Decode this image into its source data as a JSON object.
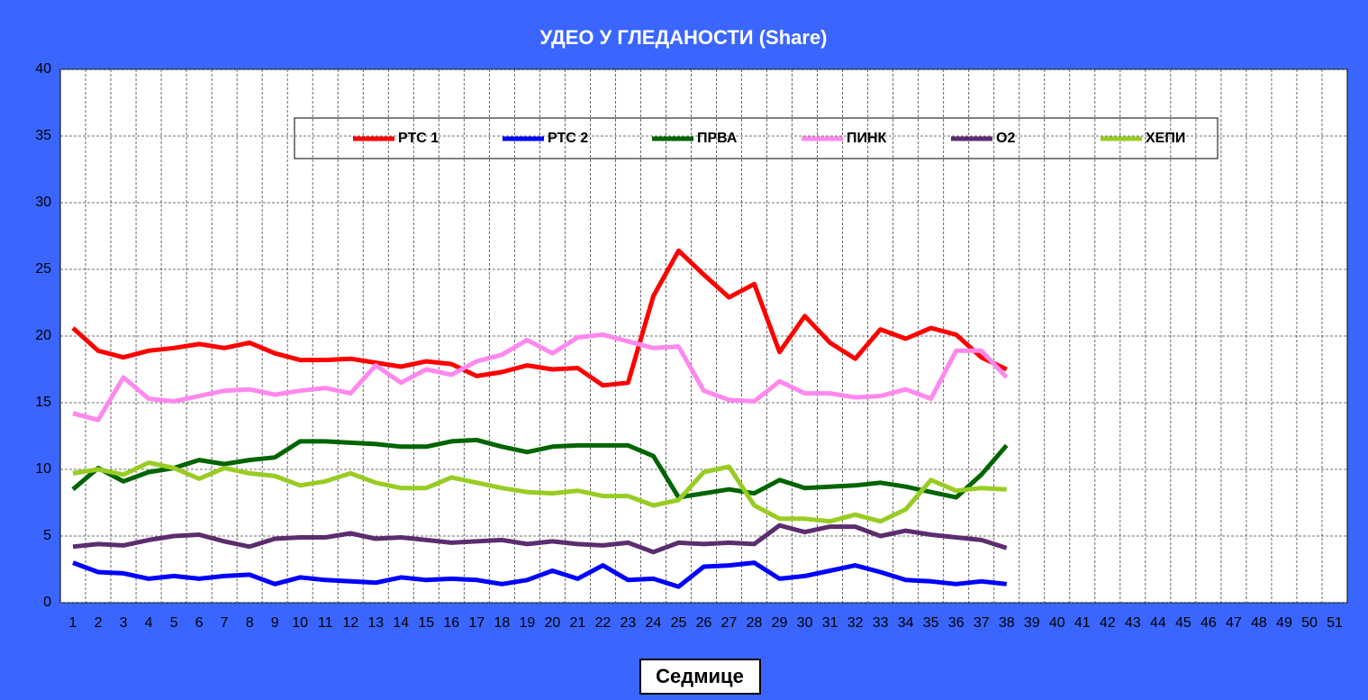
{
  "chart_data": {
    "type": "line",
    "title": "УДЕО У ГЛЕДАНОСТИ (Share)",
    "x_label": "Седмице",
    "categories": [
      "1",
      "2",
      "3",
      "4",
      "5",
      "6",
      "7",
      "8",
      "9",
      "10",
      "11",
      "12",
      "13",
      "14",
      "15",
      "16",
      "17",
      "18",
      "19",
      "20",
      "21",
      "22",
      "23",
      "24",
      "25",
      "26",
      "27",
      "28",
      "29",
      "30",
      "31",
      "32",
      "33",
      "34",
      "35",
      "36",
      "37",
      "38",
      "39",
      "40",
      "41",
      "42",
      "43",
      "44",
      "45",
      "46",
      "47",
      "48",
      "49",
      "50",
      "51"
    ],
    "ylim": [
      0,
      40
    ],
    "yticks": [
      0,
      5,
      10,
      15,
      20,
      25,
      30,
      35,
      40
    ],
    "grid": true,
    "legend": "top",
    "series": [
      {
        "name": "РТС 1",
        "color": "#ff0000",
        "values": [
          20.6,
          18.9,
          18.4,
          18.9,
          19.1,
          19.4,
          19.1,
          19.5,
          18.7,
          18.2,
          18.2,
          18.3,
          18.0,
          17.7,
          18.1,
          17.9,
          17.0,
          17.3,
          17.8,
          17.5,
          17.6,
          16.3,
          16.5,
          23.0,
          26.4,
          24.6,
          22.9,
          23.9,
          18.8,
          21.5,
          19.5,
          18.3,
          20.5,
          19.8,
          20.6,
          20.1,
          18.4,
          17.5,
          null,
          null,
          null,
          null,
          null,
          null,
          null,
          null,
          null,
          null,
          null,
          null,
          null
        ]
      },
      {
        "name": "РТС 2",
        "color": "#0000ff",
        "values": [
          3.0,
          2.3,
          2.2,
          1.8,
          2.0,
          1.8,
          2.0,
          2.1,
          1.4,
          1.9,
          1.7,
          1.6,
          1.5,
          1.9,
          1.7,
          1.8,
          1.7,
          1.4,
          1.7,
          2.4,
          1.8,
          2.8,
          1.7,
          1.8,
          1.2,
          2.7,
          2.8,
          3.0,
          1.8,
          2.0,
          2.4,
          2.8,
          2.3,
          1.7,
          1.6,
          1.4,
          1.6,
          1.4,
          null,
          null,
          null,
          null,
          null,
          null,
          null,
          null,
          null,
          null,
          null,
          null,
          null
        ]
      },
      {
        "name": "ПРВА",
        "color": "#006400",
        "values": [
          8.5,
          10.1,
          9.1,
          9.8,
          10.1,
          10.7,
          10.4,
          10.7,
          10.9,
          12.1,
          12.1,
          12.0,
          11.9,
          11.7,
          11.7,
          12.1,
          12.2,
          11.7,
          11.3,
          11.7,
          11.8,
          11.8,
          11.8,
          11.0,
          7.9,
          8.2,
          8.5,
          8.2,
          9.2,
          8.6,
          8.7,
          8.8,
          9.0,
          8.7,
          8.3,
          7.9,
          9.6,
          11.8,
          null,
          null,
          null,
          null,
          null,
          null,
          null,
          null,
          null,
          null,
          null,
          null,
          null
        ]
      },
      {
        "name": "ПИНК",
        "color": "#ff88ee",
        "values": [
          14.2,
          13.7,
          16.9,
          15.3,
          15.1,
          15.5,
          15.9,
          16.0,
          15.6,
          15.9,
          16.1,
          15.7,
          17.8,
          16.5,
          17.5,
          17.1,
          18.1,
          18.6,
          19.7,
          18.7,
          19.9,
          20.1,
          19.6,
          19.1,
          19.2,
          15.9,
          15.2,
          15.1,
          16.6,
          15.7,
          15.7,
          15.4,
          15.5,
          16.0,
          15.3,
          18.9,
          18.9,
          16.9,
          null,
          null,
          null,
          null,
          null,
          null,
          null,
          null,
          null,
          null,
          null,
          null,
          null
        ]
      },
      {
        "name": "О2",
        "color": "#5c2d6e",
        "values": [
          4.2,
          4.4,
          4.3,
          4.7,
          5.0,
          5.1,
          4.6,
          4.2,
          4.8,
          4.9,
          4.9,
          5.2,
          4.8,
          4.9,
          4.7,
          4.5,
          4.6,
          4.7,
          4.4,
          4.6,
          4.4,
          4.3,
          4.5,
          3.8,
          4.5,
          4.4,
          4.5,
          4.4,
          5.8,
          5.3,
          5.7,
          5.7,
          5.0,
          5.4,
          5.1,
          4.9,
          4.7,
          4.1,
          null,
          null,
          null,
          null,
          null,
          null,
          null,
          null,
          null,
          null,
          null,
          null,
          null
        ]
      },
      {
        "name": "ХЕПИ",
        "color": "#99cc22",
        "values": [
          9.7,
          10.0,
          9.6,
          10.5,
          10.1,
          9.3,
          10.1,
          9.7,
          9.5,
          8.8,
          9.1,
          9.7,
          9.0,
          8.6,
          8.6,
          9.4,
          9.0,
          8.6,
          8.3,
          8.2,
          8.4,
          8.0,
          8.0,
          7.3,
          7.7,
          9.8,
          10.2,
          7.3,
          6.3,
          6.3,
          6.1,
          6.6,
          6.1,
          7.0,
          9.2,
          8.4,
          8.6,
          8.5,
          null,
          null,
          null,
          null,
          null,
          null,
          null,
          null,
          null,
          null,
          null,
          null,
          null
        ]
      }
    ]
  }
}
